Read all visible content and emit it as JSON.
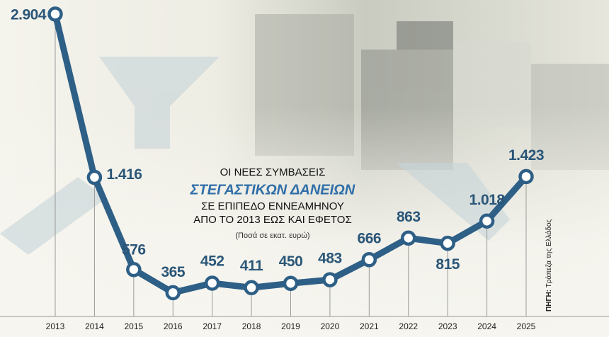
{
  "chart_data": {
    "type": "line",
    "title_lines": [
      "ΟΙ ΝΕΕΣ ΣΥΜΒΑΣΕΙΣ",
      "ΣΤΕΓΑΣΤΙΚΩΝ ΔΑΝΕΙΩΝ",
      "ΣΕ ΕΠΙΠΕΔΟ ΕΝΝΕΑΜΗΝΟΥ",
      "ΑΠΟ ΤΟ 2013 ΕΩΣ ΚΑΙ ΕΦΕΤΟΣ"
    ],
    "subtitle": "(Ποσά σε εκατ. ευρώ)",
    "source_label": "ΠΗΓΗ:",
    "source": "Τράπεζα της Ελλάδος",
    "categories": [
      "2013",
      "2014",
      "2015",
      "2016",
      "2017",
      "2018",
      "2019",
      "2020",
      "2021",
      "2022",
      "2023",
      "2024",
      "2025"
    ],
    "values": [
      2904,
      1416,
      576,
      365,
      452,
      411,
      450,
      483,
      666,
      863,
      815,
      1018,
      1423
    ],
    "value_labels": [
      "2.904",
      "1.416",
      "576",
      "365",
      "452",
      "411",
      "450",
      "483",
      "666",
      "863",
      "815",
      "1.018",
      "1.423"
    ],
    "color": "#2e5f86",
    "ylim": [
      0,
      3000
    ]
  }
}
